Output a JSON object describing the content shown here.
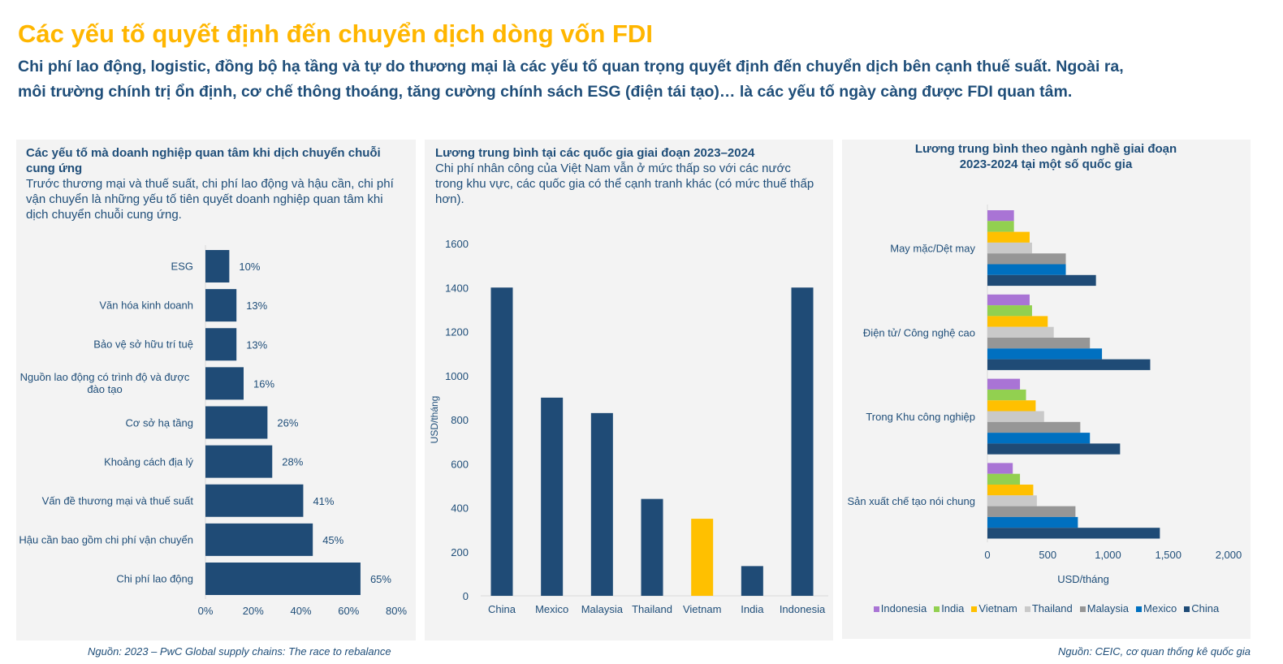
{
  "header": {
    "title": "Các yếu tố quyết định đến chuyển dịch dòng vốn FDI",
    "subtitle_lines": [
      "Chi phí lao động, logistic, đồng bộ hạ tầng và tự do thương mại là các yếu tố quan trọng quyết định đến chuyển dịch bên cạnh thuế suất. Ngoài ra,",
      "môi trường chính trị ổn định, cơ chế thông thoáng, tăng cường chính sách ESG (điện tái tạo)… là các yếu tố ngày càng được FDI quan tâm."
    ]
  },
  "panels": {
    "factors": {
      "description": "Trước thương mại và thuế suất, chi phí lao động và hậu cần, chi phí vận chuyển là những yếu tố tiên quyết doanh nghiệp quan tâm khi dịch chuyển chuỗi cung ứng."
    },
    "wages": {
      "description": "Chi phí nhân công của Việt Nam vẫn ở mức thấp so với các nước trong khu vực, các quốc gia có thể cạnh tranh khác (có mức thuế thấp hơn)."
    }
  },
  "footer": {
    "left_source": "Nguồn: 2023 – PwC Global supply chains: The race to rebalance",
    "right_source": "Nguồn: CEIC, cơ quan thống kê quốc gia"
  },
  "colors": {
    "title": "#FFB600",
    "text": "#1F4E79",
    "panel_bg": "#F3F3F3",
    "bar": "#1F4B76",
    "highlight": "#FFC000"
  },
  "chart_data": [
    {
      "type": "bar",
      "orientation": "horizontal",
      "title": "Các yếu tố mà doanh nghiệp quan tâm khi dịch chuyển chuỗi cung ứng",
      "categories": [
        "ESG",
        "Văn hóa kinh doanh",
        "Bảo vệ sở hữu trí tuệ",
        "Nguồn lao động có trình độ và được đào tạo",
        "Cơ sở hạ tầng",
        "Khoảng cách địa lý",
        "Vấn đề thương mại và thuế suất",
        "Hậu cần bao gồm chi phí vận chuyển",
        "Chi phí lao động"
      ],
      "values": [
        10,
        13,
        13,
        16,
        26,
        28,
        41,
        45,
        65
      ],
      "data_labels": [
        "10%",
        "13%",
        "13%",
        "16%",
        "26%",
        "28%",
        "41%",
        "45%",
        "65%"
      ],
      "xlim": [
        0,
        80
      ],
      "xticks": [
        "0%",
        "20%",
        "40%",
        "60%",
        "80%"
      ],
      "grid": false,
      "color": "#1F4B76"
    },
    {
      "type": "bar",
      "title": "Lương trung bình tại các quốc gia giai đoạn 2023–2024",
      "categories": [
        "China",
        "Mexico",
        "Malaysia",
        "Thailand",
        "Vietnam",
        "India",
        "Indonesia"
      ],
      "values": [
        1400,
        900,
        830,
        440,
        350,
        135,
        1400
      ],
      "ylabel": "USD/tháng",
      "ylim": [
        0,
        1600
      ],
      "yticks": [
        "0",
        "200",
        "400",
        "600",
        "800",
        "1000",
        "1200",
        "1400",
        "1600"
      ],
      "grid": false,
      "color": "#1F4B76",
      "highlight": {
        "category": "Vietnam",
        "color": "#FFC000"
      }
    },
    {
      "type": "bar",
      "orientation": "horizontal",
      "title": "Lương trung bình theo ngành nghề giai đoạn 2023-2024 tại một số quốc gia",
      "categories": [
        "May mặc/Dệt may",
        "Điện tử/ Công nghệ cao",
        "Trong Khu công nghiệp",
        "Sản xuất chế tạo nói chung"
      ],
      "series": [
        {
          "name": "Indonesia",
          "color": "#A974D5",
          "values": [
            220,
            350,
            270,
            210
          ]
        },
        {
          "name": "India",
          "color": "#92D050",
          "values": [
            220,
            370,
            320,
            270
          ]
        },
        {
          "name": "Vietnam",
          "color": "#FFC000",
          "values": [
            350,
            500,
            400,
            380
          ]
        },
        {
          "name": "Thailand",
          "color": "#C9C9C9",
          "values": [
            370,
            550,
            470,
            410
          ]
        },
        {
          "name": "Malaysia",
          "color": "#969696",
          "values": [
            650,
            850,
            770,
            730
          ]
        },
        {
          "name": "Mexico",
          "color": "#0070C0",
          "values": [
            650,
            950,
            850,
            750
          ]
        },
        {
          "name": "China",
          "color": "#1F4B76",
          "values": [
            900,
            1350,
            1100,
            1430
          ]
        }
      ],
      "xlabel": "USD/tháng",
      "xlim": [
        0,
        2000
      ],
      "xticks": [
        "0",
        "500",
        "1,000",
        "1,500",
        "2,000"
      ],
      "grid": false,
      "legend": "bottom"
    }
  ]
}
